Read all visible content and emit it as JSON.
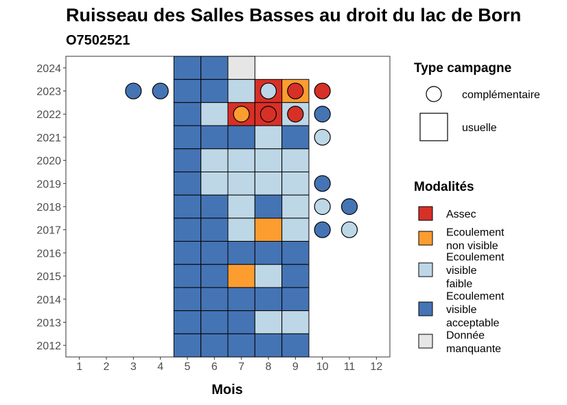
{
  "chart_data": {
    "type": "heatmap",
    "title": "Ruisseau des Salles Basses au droit du lac de Born",
    "subtitle": "O7502521",
    "xlabel": "Mois",
    "ylabel": "",
    "x_ticks": [
      1,
      2,
      3,
      4,
      5,
      6,
      7,
      8,
      9,
      10,
      11,
      12
    ],
    "y_ticks": [
      2012,
      2013,
      2014,
      2015,
      2016,
      2017,
      2018,
      2019,
      2020,
      2021,
      2022,
      2023,
      2024
    ],
    "xlim": [
      0.5,
      12.5
    ],
    "ylim": [
      2011.5,
      2024.5
    ],
    "grid": false,
    "legend_placement": "right",
    "colors": {
      "Assec": "#d73027",
      "Ecoulement non visible": "#fd9d30",
      "Ecoulement visible faible": "#bdd7e7",
      "Ecoulement visible acceptable": "#4574b4",
      "Donnée manquante": "#e6e6e6"
    },
    "cells_usuelle": [
      {
        "year": 2024,
        "month": 5,
        "modalite": "Ecoulement visible acceptable"
      },
      {
        "year": 2024,
        "month": 6,
        "modalite": "Ecoulement visible acceptable"
      },
      {
        "year": 2024,
        "month": 7,
        "modalite": "Donnée manquante"
      },
      {
        "year": 2023,
        "month": 5,
        "modalite": "Ecoulement visible acceptable"
      },
      {
        "year": 2023,
        "month": 6,
        "modalite": "Ecoulement visible acceptable"
      },
      {
        "year": 2023,
        "month": 7,
        "modalite": "Ecoulement visible faible"
      },
      {
        "year": 2023,
        "month": 8,
        "modalite": "Assec"
      },
      {
        "year": 2023,
        "month": 9,
        "modalite": "Ecoulement non visible"
      },
      {
        "year": 2022,
        "month": 5,
        "modalite": "Ecoulement visible acceptable"
      },
      {
        "year": 2022,
        "month": 6,
        "modalite": "Ecoulement visible faible"
      },
      {
        "year": 2022,
        "month": 7,
        "modalite": "Assec"
      },
      {
        "year": 2022,
        "month": 8,
        "modalite": "Assec"
      },
      {
        "year": 2022,
        "month": 9,
        "modalite": "Ecoulement visible faible"
      },
      {
        "year": 2021,
        "month": 5,
        "modalite": "Ecoulement visible acceptable"
      },
      {
        "year": 2021,
        "month": 6,
        "modalite": "Ecoulement visible acceptable"
      },
      {
        "year": 2021,
        "month": 7,
        "modalite": "Ecoulement visible acceptable"
      },
      {
        "year": 2021,
        "month": 8,
        "modalite": "Ecoulement visible faible"
      },
      {
        "year": 2021,
        "month": 9,
        "modalite": "Ecoulement visible acceptable"
      },
      {
        "year": 2020,
        "month": 5,
        "modalite": "Ecoulement visible acceptable"
      },
      {
        "year": 2020,
        "month": 6,
        "modalite": "Ecoulement visible faible"
      },
      {
        "year": 2020,
        "month": 7,
        "modalite": "Ecoulement visible faible"
      },
      {
        "year": 2020,
        "month": 8,
        "modalite": "Ecoulement visible faible"
      },
      {
        "year": 2020,
        "month": 9,
        "modalite": "Ecoulement visible faible"
      },
      {
        "year": 2019,
        "month": 5,
        "modalite": "Ecoulement visible acceptable"
      },
      {
        "year": 2019,
        "month": 6,
        "modalite": "Ecoulement visible faible"
      },
      {
        "year": 2019,
        "month": 7,
        "modalite": "Ecoulement visible faible"
      },
      {
        "year": 2019,
        "month": 8,
        "modalite": "Ecoulement visible faible"
      },
      {
        "year": 2019,
        "month": 9,
        "modalite": "Ecoulement visible faible"
      },
      {
        "year": 2018,
        "month": 5,
        "modalite": "Ecoulement visible acceptable"
      },
      {
        "year": 2018,
        "month": 6,
        "modalite": "Ecoulement visible acceptable"
      },
      {
        "year": 2018,
        "month": 7,
        "modalite": "Ecoulement visible faible"
      },
      {
        "year": 2018,
        "month": 8,
        "modalite": "Ecoulement visible acceptable"
      },
      {
        "year": 2018,
        "month": 9,
        "modalite": "Ecoulement visible faible"
      },
      {
        "year": 2017,
        "month": 5,
        "modalite": "Ecoulement visible acceptable"
      },
      {
        "year": 2017,
        "month": 6,
        "modalite": "Ecoulement visible acceptable"
      },
      {
        "year": 2017,
        "month": 7,
        "modalite": "Ecoulement visible faible"
      },
      {
        "year": 2017,
        "month": 8,
        "modalite": "Ecoulement non visible"
      },
      {
        "year": 2017,
        "month": 9,
        "modalite": "Ecoulement visible faible"
      },
      {
        "year": 2016,
        "month": 5,
        "modalite": "Ecoulement visible acceptable"
      },
      {
        "year": 2016,
        "month": 6,
        "modalite": "Ecoulement visible acceptable"
      },
      {
        "year": 2016,
        "month": 7,
        "modalite": "Ecoulement visible acceptable"
      },
      {
        "year": 2016,
        "month": 8,
        "modalite": "Ecoulement visible acceptable"
      },
      {
        "year": 2016,
        "month": 9,
        "modalite": "Ecoulement visible acceptable"
      },
      {
        "year": 2015,
        "month": 5,
        "modalite": "Ecoulement visible acceptable"
      },
      {
        "year": 2015,
        "month": 6,
        "modalite": "Ecoulement visible acceptable"
      },
      {
        "year": 2015,
        "month": 7,
        "modalite": "Ecoulement non visible"
      },
      {
        "year": 2015,
        "month": 8,
        "modalite": "Ecoulement visible faible"
      },
      {
        "year": 2015,
        "month": 9,
        "modalite": "Ecoulement visible acceptable"
      },
      {
        "year": 2014,
        "month": 5,
        "modalite": "Ecoulement visible acceptable"
      },
      {
        "year": 2014,
        "month": 6,
        "modalite": "Ecoulement visible acceptable"
      },
      {
        "year": 2014,
        "month": 7,
        "modalite": "Ecoulement visible acceptable"
      },
      {
        "year": 2014,
        "month": 8,
        "modalite": "Ecoulement visible acceptable"
      },
      {
        "year": 2014,
        "month": 9,
        "modalite": "Ecoulement visible acceptable"
      },
      {
        "year": 2013,
        "month": 5,
        "modalite": "Ecoulement visible acceptable"
      },
      {
        "year": 2013,
        "month": 6,
        "modalite": "Ecoulement visible acceptable"
      },
      {
        "year": 2013,
        "month": 7,
        "modalite": "Ecoulement visible acceptable"
      },
      {
        "year": 2013,
        "month": 8,
        "modalite": "Ecoulement visible faible"
      },
      {
        "year": 2013,
        "month": 9,
        "modalite": "Ecoulement visible faible"
      },
      {
        "year": 2012,
        "month": 5,
        "modalite": "Ecoulement visible acceptable"
      },
      {
        "year": 2012,
        "month": 6,
        "modalite": "Ecoulement visible acceptable"
      },
      {
        "year": 2012,
        "month": 7,
        "modalite": "Ecoulement visible acceptable"
      },
      {
        "year": 2012,
        "month": 8,
        "modalite": "Ecoulement visible acceptable"
      },
      {
        "year": 2012,
        "month": 9,
        "modalite": "Ecoulement visible acceptable"
      }
    ],
    "points_complementaire": [
      {
        "year": 2023,
        "month": 3,
        "modalite": "Ecoulement visible acceptable"
      },
      {
        "year": 2023,
        "month": 4,
        "modalite": "Ecoulement visible acceptable"
      },
      {
        "year": 2023,
        "month": 8,
        "modalite": "Ecoulement visible faible"
      },
      {
        "year": 2023,
        "month": 9,
        "modalite": "Assec"
      },
      {
        "year": 2023,
        "month": 10,
        "modalite": "Assec"
      },
      {
        "year": 2022,
        "month": 7,
        "modalite": "Ecoulement non visible"
      },
      {
        "year": 2022,
        "month": 8,
        "modalite": "Assec"
      },
      {
        "year": 2022,
        "month": 9,
        "modalite": "Assec"
      },
      {
        "year": 2022,
        "month": 10,
        "modalite": "Ecoulement visible acceptable"
      },
      {
        "year": 2021,
        "month": 10,
        "modalite": "Ecoulement visible faible"
      },
      {
        "year": 2019,
        "month": 10,
        "modalite": "Ecoulement visible acceptable"
      },
      {
        "year": 2018,
        "month": 10,
        "modalite": "Ecoulement visible faible"
      },
      {
        "year": 2018,
        "month": 11,
        "modalite": "Ecoulement visible acceptable"
      },
      {
        "year": 2017,
        "month": 10,
        "modalite": "Ecoulement visible acceptable"
      },
      {
        "year": 2017,
        "month": 11,
        "modalite": "Ecoulement visible faible"
      }
    ],
    "legend_type": {
      "title": "Type campagne",
      "items": [
        {
          "label": "complémentaire",
          "shape": "circle"
        },
        {
          "label": "usuelle",
          "shape": "square"
        }
      ]
    },
    "legend_modalites": {
      "title": "Modalités",
      "items": [
        {
          "key": "Assec",
          "lines": [
            "Assec"
          ]
        },
        {
          "key": "Ecoulement non visible",
          "lines": [
            "Ecoulement",
            "non visible"
          ]
        },
        {
          "key": "Ecoulement visible faible",
          "lines": [
            "Ecoulement",
            "visible",
            "faible"
          ]
        },
        {
          "key": "Ecoulement visible acceptable",
          "lines": [
            "Ecoulement",
            "visible",
            "acceptable"
          ]
        },
        {
          "key": "Donnée manquante",
          "lines": [
            "Donnée",
            "manquante"
          ]
        }
      ]
    }
  }
}
